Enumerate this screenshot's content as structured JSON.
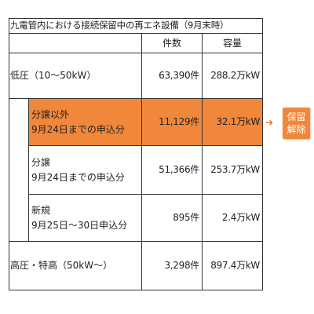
{
  "table": {
    "title": "九電管内における接続保留中の再エネ設備（9月末時）",
    "columns": {
      "count": "件数",
      "capacity": "容量"
    },
    "rows": {
      "low_voltage": {
        "label": "低圧（10～50kW）",
        "count": "63,390件",
        "capacity": "288.2万kW"
      },
      "non_transfer": {
        "label1": "分譲以外",
        "label2": "9月24日までの申込分",
        "count": "11,129件",
        "capacity": "32.1万kW"
      },
      "transfer": {
        "label1": "分譲",
        "label2": "9月24日までの申込分",
        "count": "51,366件",
        "capacity": "253.7万kW"
      },
      "new": {
        "label1": "新規",
        "label2": "9月25日～30日申込分",
        "count": "895件",
        "capacity": "2.4万kW"
      },
      "high_voltage": {
        "label": "高圧・特高（50kW～）",
        "count": "3,298件",
        "capacity": "897.4万kW"
      }
    }
  },
  "callout": {
    "line1": "保留",
    "line2": "解除",
    "arrow": "➔"
  },
  "colors": {
    "highlight": "#f0873a",
    "arrow": "#e8702a"
  }
}
